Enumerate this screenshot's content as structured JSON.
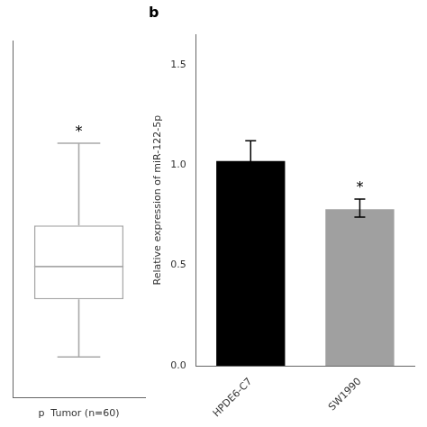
{
  "chart_data": [
    {
      "type": "box",
      "categories": [
        "p  Tumor (n=60)"
      ],
      "whisker_lo": [
        0.08
      ],
      "q1": [
        0.22
      ],
      "median": [
        0.3
      ],
      "q3": [
        0.4
      ],
      "whisker_hi": [
        0.6
      ],
      "color": "#a8a8a8",
      "ylim": [
        -0.02,
        0.85
      ],
      "tick_labels": "x",
      "grid": false,
      "annotations": [
        {
          "text": "*",
          "category": "p  Tumor (n=60)"
        }
      ]
    },
    {
      "type": "bar",
      "title": "b",
      "categories": [
        "HPDE6-C7",
        "SW1990"
      ],
      "values": [
        1.02,
        0.78
      ],
      "error_upper": [
        0.1,
        0.05
      ],
      "error_lower": [
        0.07,
        0.04
      ],
      "colors": [
        "#000000",
        "#a0a0a0"
      ],
      "ylabel": "Relative expression of miR-122-5p",
      "ylim": [
        0.0,
        1.65
      ],
      "yticks": [
        {
          "value": 0.0,
          "label": "0.0"
        },
        0.5,
        {
          "value": 1.0,
          "label": "1.0"
        },
        1.5
      ],
      "grid": false,
      "annotations": [
        {
          "text": "*",
          "category": "SW1990"
        }
      ]
    }
  ]
}
